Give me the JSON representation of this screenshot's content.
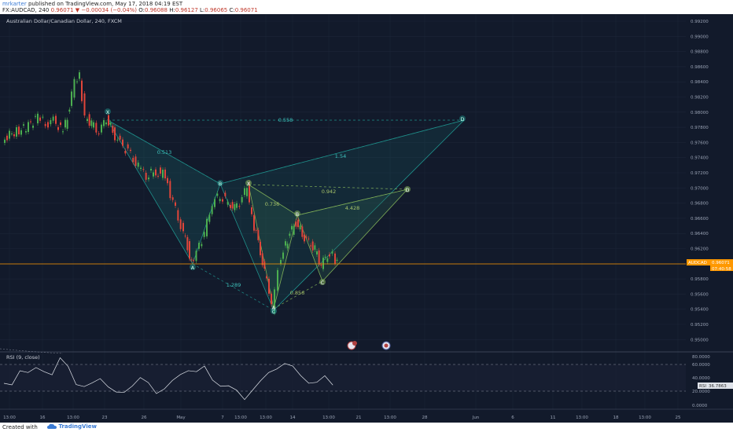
{
  "header": {
    "author": "mrkarter",
    "published": "published on TradingView.com, May 17, 2018 04:19 EST",
    "symbol_line_prefix": "FX:AUDCAD, 240",
    "arrow": "▼",
    "change": "−0.00034 (−0.04%)",
    "ohlc_o_label": "O:",
    "ohlc_o": "0.96088",
    "ohlc_h_label": "H:",
    "ohlc_h": "0.96127",
    "ohlc_l_label": "L:",
    "ohlc_l": "0.96065",
    "ohlc_c_label": "C:",
    "ohlc_c": "0.96071",
    "price_prefix": "0.96071"
  },
  "chart": {
    "title": "Australian Dollar/Canadian Dollar, 240, FXCM",
    "price_axis": [
      "0.99200",
      "0.99000",
      "0.98800",
      "0.98600",
      "0.98400",
      "0.98200",
      "0.98000",
      "0.97800",
      "0.97600",
      "0.97400",
      "0.97200",
      "0.97000",
      "0.96800",
      "0.96600",
      "0.96400",
      "0.96200",
      "0.96000",
      "0.95800",
      "0.95600",
      "0.95400",
      "0.95200",
      "0.95000"
    ],
    "price_tag_symbol": "AUDCAD",
    "price_tag_value": "0.96071",
    "price_tag_time": "07:40:58",
    "pattern_points": [
      "X",
      "A",
      "B",
      "C",
      "D",
      "X",
      "A",
      "B",
      "C",
      "D"
    ],
    "pattern_ratios": [
      "0.558",
      "0.513",
      "1.54",
      "0.942",
      "0.736",
      "4.428",
      "1.289",
      "0.856"
    ]
  },
  "rsi": {
    "title": "RSI (9, close)",
    "axis": [
      "80.0000",
      "60.0000",
      "40.0000",
      "20.0000",
      "0.0000"
    ],
    "value_label": "RSI",
    "value": "36.7863"
  },
  "time_axis": [
    "13:00",
    "16",
    "13:00",
    "23",
    "26",
    "May",
    "7",
    "13:00",
    "13:00",
    "14",
    "13:00",
    "21",
    "13:00",
    "28",
    "Jun",
    "6",
    "11",
    "13:00",
    "18",
    "13:00",
    "25"
  ],
  "footer": {
    "created_with": "Created with",
    "brand": "TradingView"
  },
  "colors": {
    "background": "#121a2b",
    "bull": "#4caf50",
    "bear": "#e0453a",
    "accent": "#ff9800",
    "pattern1": "#1f8f8a",
    "pattern2": "#9cb84a"
  }
}
